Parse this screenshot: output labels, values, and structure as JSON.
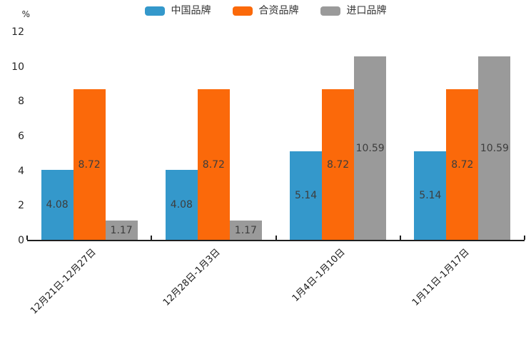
{
  "chart_data": {
    "type": "bar",
    "unit_label": "%",
    "categories": [
      "12月21日-12月27日",
      "12月28日-1月3日",
      "1月4日-1月10日",
      "1月11日-1月17日"
    ],
    "series": [
      {
        "name": "中国品牌",
        "color": "#3498cb",
        "values": [
          4.08,
          4.08,
          5.14,
          5.14
        ]
      },
      {
        "name": "合资品牌",
        "color": "#fb690a",
        "values": [
          8.72,
          8.72,
          8.72,
          8.72
        ]
      },
      {
        "name": "进口品牌",
        "color": "#9a9a9a",
        "values": [
          1.17,
          1.17,
          10.59,
          10.59
        ]
      }
    ],
    "value_label_format": "2dp",
    "y_ticks": [
      0,
      2,
      4,
      6,
      8,
      10,
      12
    ],
    "ylim": [
      0,
      12
    ],
    "legend_position": "top",
    "grid": false,
    "x_label_rotation_deg": 45,
    "colors": {
      "axis": "#1f1f1f",
      "tick_text": "#262626",
      "value_label_text": "#3d3d3d",
      "background": "#ffffff"
    }
  }
}
